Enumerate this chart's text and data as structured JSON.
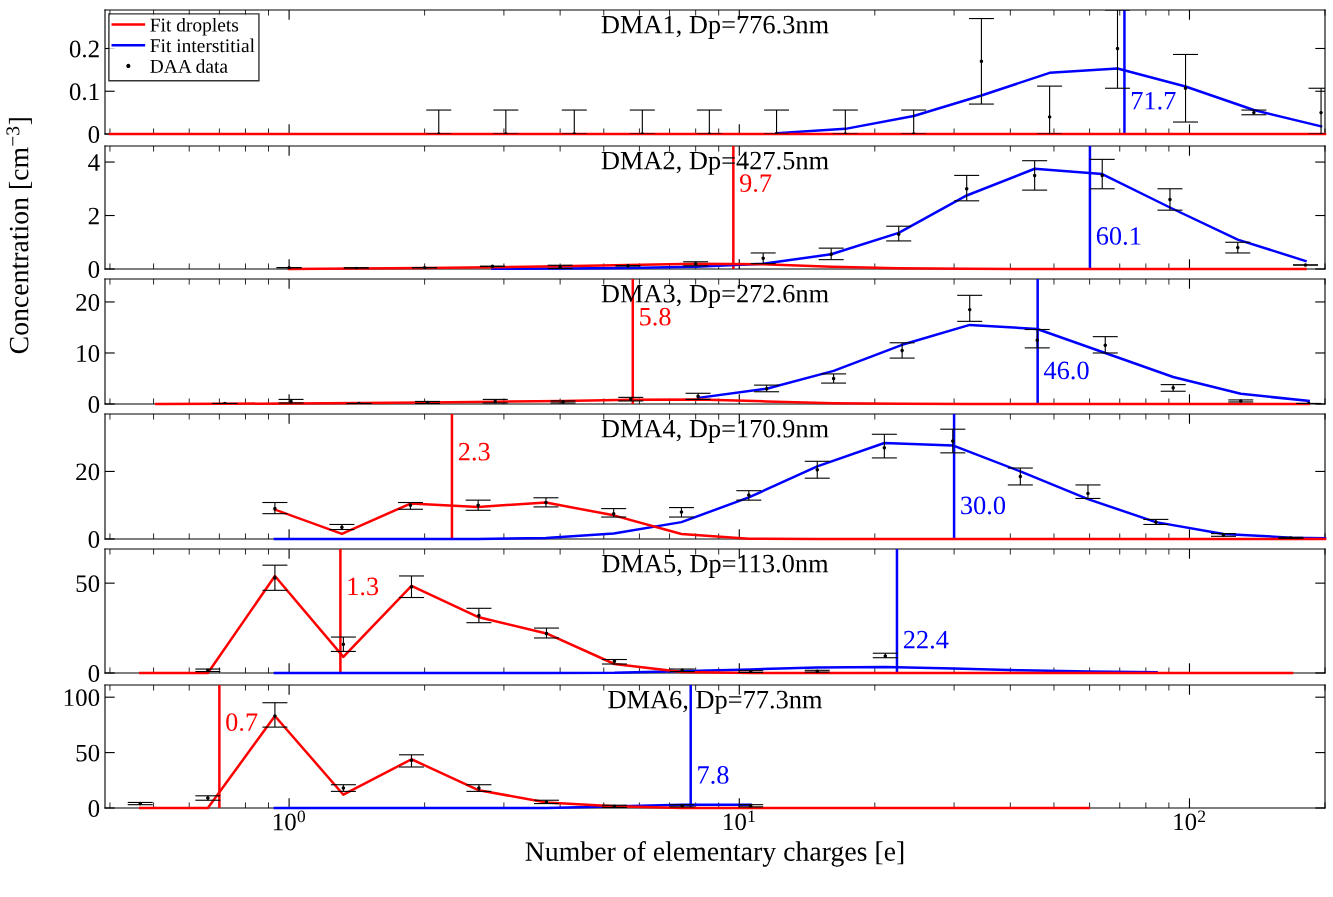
{
  "chart_data": [
    {
      "type": "line",
      "title": "DMA1, Dp=776.3nm",
      "log": "x",
      "xlim": [
        0.39,
        200
      ],
      "xticks": [
        1,
        10,
        100
      ],
      "ylim": [
        0,
        0.29
      ],
      "yticks": [
        0,
        0.1,
        0.2
      ],
      "tick_labels": "y",
      "legend": "top left",
      "grid": false,
      "series": [
        {
          "name": "Fit droplets",
          "color": "#ff0000",
          "x": [
            0.4,
            200
          ],
          "values": [
            0,
            0
          ]
        },
        {
          "name": "Fit interstitial",
          "color": "#0000ff",
          "x": [
            12.1,
            17.2,
            24.4,
            34.5,
            48.9,
            69.2,
            98,
            139,
            196
          ],
          "values": [
            0.002,
            0.012,
            0.042,
            0.09,
            0.143,
            0.153,
            0.111,
            0.056,
            0.018
          ]
        },
        {
          "name": "DAA data",
          "type": "scatter",
          "marker": "circle",
          "color": "#000000",
          "x": [
            2.15,
            3.03,
            4.3,
            6.09,
            8.58,
            12.1,
            17.2,
            24.4,
            34.5,
            48.9,
            69.2,
            98,
            139,
            196
          ],
          "values": [
            0,
            0,
            0,
            0,
            0,
            0,
            0,
            0,
            0.17,
            0.04,
            0.2,
            0.107,
            0.05,
            0.05
          ],
          "errors": [
            [
              0,
              0.056
            ],
            [
              0,
              0.056
            ],
            [
              0,
              0.056
            ],
            [
              0,
              0.056
            ],
            [
              0,
              0.056
            ],
            [
              0,
              0.056
            ],
            [
              0,
              0.056
            ],
            [
              0,
              0.056
            ],
            [
              0.07,
              0.27
            ],
            [
              0,
              0.112
            ],
            [
              0.107,
              0.29
            ],
            [
              0.028,
              0.186
            ],
            [
              0.045,
              0.056
            ],
            [
              0,
              0.107
            ]
          ]
        }
      ],
      "ref_lines": [
        {
          "axis": "x",
          "value": 71.7,
          "label": "71.7",
          "color": "#0000ff"
        }
      ]
    },
    {
      "type": "line",
      "title": "DMA2, Dp=427.5nm",
      "log": "x",
      "xlim": [
        0.39,
        200
      ],
      "xticks": [
        1,
        10,
        100
      ],
      "ylim": [
        0,
        4.6
      ],
      "yticks": [
        0,
        2,
        4
      ],
      "tick_labels": "y",
      "grid": false,
      "series": [
        {
          "color": "#ff0000",
          "x": [
            1.0,
            1.41,
            2.0,
            2.83,
            4.0,
            5.66,
            8.0,
            11.3,
            16,
            22.6,
            32,
            45.3,
            64,
            90.5,
            128,
            181
          ],
          "values": [
            0,
            0.02,
            0.04,
            0.07,
            0.1,
            0.15,
            0.2,
            0.18,
            0.08,
            0.03,
            0.01,
            0,
            0,
            0,
            0,
            0
          ]
        },
        {
          "color": "#0000ff",
          "x": [
            2.83,
            4.0,
            5.66,
            8.0,
            11.3,
            16,
            22.6,
            32,
            45.3,
            64,
            90.5,
            128,
            181
          ],
          "values": [
            0.01,
            0.02,
            0.04,
            0.08,
            0.2,
            0.55,
            1.35,
            2.75,
            3.75,
            3.55,
            2.3,
            1.1,
            0.3
          ]
        },
        {
          "type": "scatter",
          "marker": "circle",
          "color": "#000000",
          "x": [
            1.0,
            1.41,
            2.0,
            2.83,
            4.0,
            5.66,
            8.0,
            11.3,
            16,
            22.6,
            32,
            45.3,
            64,
            90.5,
            128,
            181
          ],
          "values": [
            0.05,
            0.02,
            0.05,
            0.1,
            0.08,
            0.12,
            0.2,
            0.4,
            0.55,
            1.3,
            3.0,
            3.5,
            3.5,
            2.6,
            0.8,
            0.15
          ],
          "errors": [
            null,
            [
              0,
              0.05
            ],
            null,
            null,
            [
              0.02,
              0.14
            ],
            null,
            [
              0.12,
              0.27
            ],
            [
              0.2,
              0.6
            ],
            [
              0.35,
              0.78
            ],
            [
              1.05,
              1.6
            ],
            [
              2.55,
              3.5
            ],
            [
              2.95,
              4.05
            ],
            [
              3.0,
              4.1
            ],
            [
              2.2,
              3.0
            ],
            [
              0.6,
              1.0
            ],
            null
          ]
        }
      ],
      "ref_lines": [
        {
          "axis": "x",
          "value": 9.7,
          "label": "9.7",
          "color": "#ff0000"
        },
        {
          "axis": "x",
          "value": 60.1,
          "label": "60.1",
          "color": "#0000ff"
        }
      ]
    },
    {
      "type": "line",
      "title": "DMA3, Dp=272.6nm",
      "log": "x",
      "xlim": [
        0.39,
        200
      ],
      "xticks": [
        1,
        10,
        100
      ],
      "ylim": [
        0,
        24.5
      ],
      "yticks": [
        0,
        10,
        20
      ],
      "tick_labels": "y",
      "grid": false,
      "ylabel": "Concentration [cm$^{−3}$]",
      "series": [
        {
          "color": "#ff0000",
          "x": [
            0.507,
            0.72,
            1.01,
            1.43,
            2.03,
            2.87,
            4.06,
            5.74,
            8.1,
            11.5,
            16.2,
            23,
            32.5,
            45.9,
            65,
            92,
            130,
            184
          ],
          "values": [
            0,
            0.05,
            0.1,
            0.2,
            0.3,
            0.45,
            0.6,
            0.85,
            0.9,
            0.5,
            0.15,
            0.05,
            0,
            0,
            0,
            0,
            0,
            0
          ]
        },
        {
          "color": "#0000ff",
          "x": [
            8.1,
            11.5,
            16.2,
            23,
            32.5,
            45.9,
            65,
            92,
            130,
            184
          ],
          "values": [
            1.2,
            3.0,
            6.5,
            11.6,
            15.5,
            14.7,
            10,
            5.3,
            2.0,
            0.6
          ]
        },
        {
          "type": "scatter",
          "marker": "circle",
          "color": "#000000",
          "x": [
            0.72,
            1.01,
            1.43,
            2.03,
            2.87,
            4.06,
            5.74,
            8.1,
            11.5,
            16.2,
            23,
            32.5,
            45.9,
            65,
            92,
            130,
            184
          ],
          "values": [
            0.1,
            0.5,
            0.1,
            0.3,
            0.5,
            0.4,
            1.0,
            1.5,
            3.0,
            5.0,
            10.5,
            18.5,
            12.5,
            11.5,
            3.2,
            0.6,
            0.1
          ],
          "errors": [
            null,
            [
              0.2,
              0.9
            ],
            null,
            [
              0.1,
              0.5
            ],
            [
              0.2,
              0.9
            ],
            [
              0.2,
              0.6
            ],
            [
              0.6,
              1.3
            ],
            [
              0.9,
              2.1
            ],
            [
              2.4,
              3.7
            ],
            [
              4.1,
              5.9
            ],
            [
              9,
              12
            ],
            [
              16.2,
              21.3
            ],
            [
              11,
              14.6
            ],
            [
              10,
              13.2
            ],
            [
              2.5,
              3.8
            ],
            [
              0.4,
              0.8
            ],
            null
          ]
        }
      ],
      "ref_lines": [
        {
          "axis": "x",
          "value": 5.8,
          "label": "5.8",
          "color": "#ff0000"
        },
        {
          "axis": "x",
          "value": 46.0,
          "label": "46.0",
          "color": "#0000ff"
        }
      ]
    },
    {
      "type": "line",
      "title": "DMA4, Dp=170.9nm",
      "log": "x",
      "xlim": [
        0.39,
        200
      ],
      "xticks": [
        1,
        10,
        100
      ],
      "ylim": [
        0,
        37
      ],
      "yticks": [
        0,
        20
      ],
      "tick_labels": "y",
      "grid": false,
      "series": [
        {
          "color": "#ff0000",
          "x": [
            0.93,
            1.31,
            1.86,
            2.63,
            3.72,
            5.26,
            7.44,
            10.5,
            14.9,
            21.0,
            29.8,
            42.1,
            59.5,
            84.2,
            119,
            168,
            200
          ],
          "values": [
            8.7,
            1.5,
            10.5,
            9.5,
            10.8,
            7,
            1.5,
            0.1,
            0,
            0,
            0,
            0,
            0,
            0,
            0,
            0,
            0
          ]
        },
        {
          "color": "#0000ff",
          "x": [
            0.93,
            1.31,
            1.86,
            2.63,
            3.72,
            5.26,
            7.44,
            10.5,
            14.9,
            21.0,
            29.8,
            42.1,
            59.5,
            84.2,
            119,
            168,
            200
          ],
          "values": [
            0,
            0,
            0,
            0,
            0.3,
            1.6,
            5,
            12.3,
            21.5,
            28.4,
            27.7,
            20,
            11.8,
            5,
            1.5,
            0.4,
            0.2
          ]
        },
        {
          "type": "scatter",
          "marker": "circle",
          "color": "#000000",
          "x": [
            0.93,
            1.31,
            1.86,
            2.63,
            3.72,
            5.26,
            7.44,
            10.5,
            14.9,
            21.0,
            29.8,
            42.1,
            59.5,
            84.2,
            119,
            168
          ],
          "values": [
            9,
            3.5,
            10,
            10,
            10.8,
            7.5,
            8,
            13,
            20.5,
            27,
            29,
            18.5,
            13.5,
            5,
            1.2,
            0.3
          ],
          "errors": [
            [
              7.5,
              10.8
            ],
            [
              2.8,
              4.3
            ],
            [
              8.8,
              10.8
            ],
            [
              8.5,
              11.5
            ],
            [
              9.5,
              12.2
            ],
            [
              6.5,
              9
            ],
            [
              6.5,
              9.3
            ],
            [
              11.5,
              14.3
            ],
            [
              18,
              23
            ],
            [
              24,
              31
            ],
            [
              25.5,
              32.5
            ],
            [
              16,
              21
            ],
            [
              12,
              16
            ],
            [
              4.3,
              5.8
            ],
            [
              0.8,
              1.6
            ],
            [
              0.1,
              0.5
            ]
          ]
        }
      ],
      "ref_lines": [
        {
          "axis": "x",
          "value": 2.3,
          "label": "2.3",
          "color": "#ff0000"
        },
        {
          "axis": "x",
          "value": 30.0,
          "label": "30.0",
          "color": "#0000ff"
        }
      ]
    },
    {
      "type": "line",
      "title": "DMA5, Dp=113.0nm",
      "log": "x",
      "xlim": [
        0.39,
        200
      ],
      "xticks": [
        1,
        10,
        100
      ],
      "ylim": [
        0,
        69
      ],
      "yticks": [
        0,
        50
      ],
      "tick_labels": "y",
      "grid": false,
      "series": [
        {
          "color": "#ff0000",
          "x": [
            0.467,
            0.66,
            0.93,
            1.32,
            1.87,
            2.64,
            3.73,
            5.28,
            7.47,
            10.6,
            14.9,
            21.1,
            29.9,
            42.2,
            59.7,
            84.5,
            119,
            169
          ],
          "values": [
            0,
            0,
            54,
            9,
            48.5,
            31,
            22,
            5,
            0.5,
            0,
            0,
            0,
            0,
            0,
            0,
            0,
            0,
            0
          ]
        },
        {
          "color": "#0000ff",
          "x": [
            0.93,
            1.32,
            1.87,
            2.64,
            3.73,
            5.28,
            10.6,
            14.9,
            21.1,
            29.9,
            42.2,
            59.7,
            84.5
          ],
          "values": [
            0,
            0,
            0,
            0,
            0,
            0.1,
            2,
            3,
            3.3,
            2.5,
            1.5,
            0.8,
            0.4
          ]
        },
        {
          "type": "scatter",
          "marker": "circle",
          "color": "#000000",
          "x": [
            0.66,
            0.93,
            1.32,
            1.87,
            2.64,
            3.73,
            5.28,
            7.47,
            10.6,
            14.9,
            21.1
          ],
          "values": [
            1.5,
            53,
            16,
            48,
            32,
            22,
            6.5,
            1.5,
            0.8,
            1,
            9.5
          ],
          "errors": [
            [
              0.8,
              2.2
            ],
            [
              46,
              60
            ],
            [
              12,
              20
            ],
            [
              42,
              54
            ],
            [
              28,
              36
            ],
            [
              19.5,
              25
            ],
            [
              5,
              7.5
            ],
            [
              0.8,
              2.2
            ],
            [
              0.3,
              1.3
            ],
            [
              0.5,
              1.5
            ],
            [
              8.5,
              11
            ]
          ]
        }
      ],
      "ref_lines": [
        {
          "axis": "x",
          "value": 1.3,
          "label": "1.3",
          "color": "#ff0000"
        },
        {
          "axis": "x",
          "value": 22.4,
          "label": "22.4",
          "color": "#0000ff"
        }
      ]
    },
    {
      "type": "line",
      "title": "DMA6, Dp=77.3nm",
      "log": "x",
      "xlim": [
        0.39,
        200
      ],
      "xticks": [
        {
          "value": 1,
          "label": "10$^{0}$"
        },
        {
          "value": 10,
          "label": "10$^{1}$"
        },
        {
          "value": 100,
          "label": "10$^{2}$"
        }
      ],
      "ylim": [
        0,
        111
      ],
      "yticks": [
        0,
        50,
        100
      ],
      "grid": false,
      "xlabel": "Number of elementary charges [e]",
      "series": [
        {
          "color": "#ff0000",
          "x": [
            0.467,
            0.66,
            0.93,
            1.32,
            1.87,
            2.64,
            3.73,
            5.28,
            7.47,
            10.6,
            14.9,
            21.1,
            29.9,
            42.2,
            59.7
          ],
          "values": [
            0,
            0,
            83,
            12,
            44,
            16,
            5,
            1.5,
            0,
            0,
            0,
            0,
            0,
            0,
            0
          ]
        },
        {
          "color": "#0000ff",
          "x": [
            0.93,
            1.32,
            1.87,
            2.64,
            3.73,
            7.47,
            10.6
          ],
          "values": [
            0,
            0,
            0,
            0,
            0,
            3,
            3
          ]
        },
        {
          "type": "scatter",
          "marker": "circle",
          "color": "#000000",
          "x": [
            0.467,
            0.66,
            0.93,
            1.32,
            1.87,
            2.64,
            3.73,
            5.28,
            7.47,
            10.6
          ],
          "values": [
            4,
            9,
            83,
            18,
            43,
            18,
            5.5,
            1.5,
            2,
            2
          ],
          "errors": [
            [
              3,
              5
            ],
            [
              7,
              11
            ],
            [
              73,
              95
            ],
            [
              15,
              21
            ],
            [
              37,
              48
            ],
            [
              15,
              21
            ],
            [
              4,
              7
            ],
            [
              0.5,
              2.5
            ],
            [
              1,
              3
            ],
            [
              1,
              3
            ]
          ]
        }
      ],
      "ref_lines": [
        {
          "axis": "x",
          "value": 0.7,
          "label": "0.7",
          "color": "#ff0000"
        },
        {
          "axis": "x",
          "value": 7.8,
          "label": "7.8",
          "color": "#0000ff"
        }
      ]
    }
  ]
}
